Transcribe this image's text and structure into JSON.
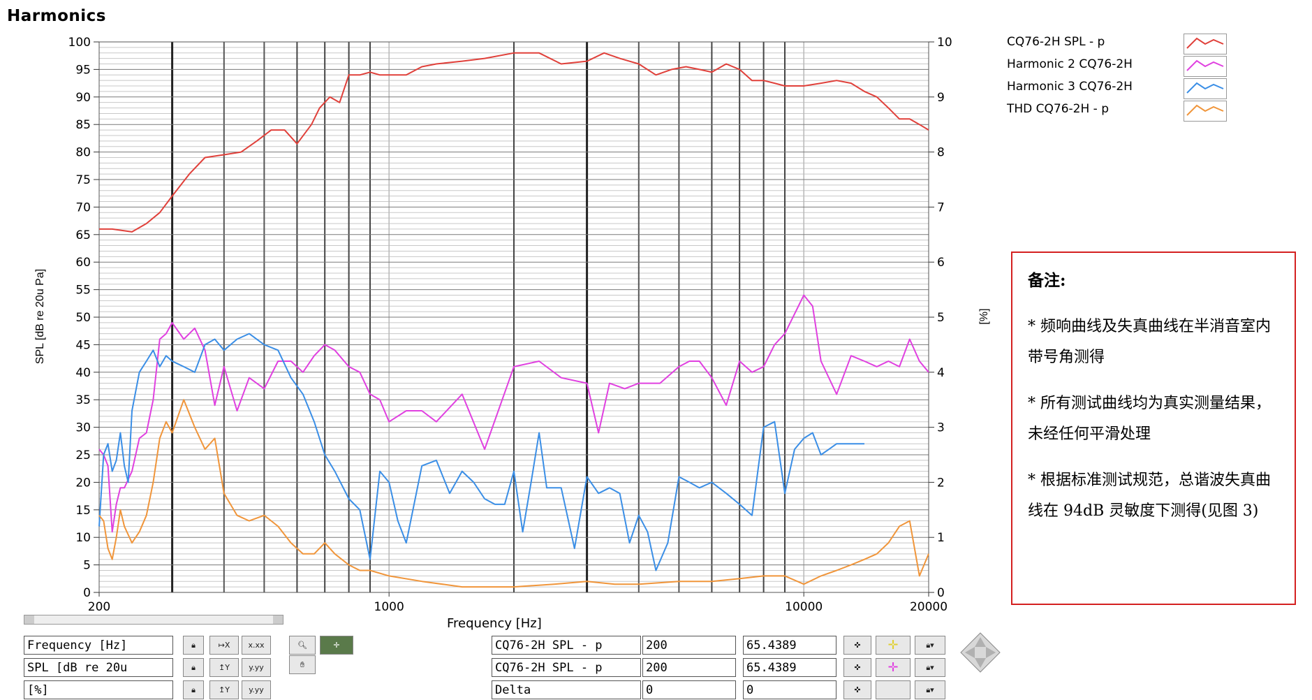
{
  "chart_data": {
    "type": "line",
    "title": "Harmonics",
    "xlabel": "Frequency [Hz]",
    "ylabel_left": "SPL [dB re 20u Pa]",
    "ylabel_right": "[%]",
    "x_scale": "log",
    "xlim": [
      200,
      20000
    ],
    "ylim_left": [
      0,
      100
    ],
    "ylim_right": [
      0,
      10
    ],
    "x_tick_labels": [
      "200",
      "1000",
      "10000",
      "20000"
    ],
    "y_tick_labels_left": [
      "0",
      "5",
      "10",
      "15",
      "20",
      "25",
      "30",
      "35",
      "40",
      "45",
      "50",
      "55",
      "60",
      "65",
      "70",
      "75",
      "80",
      "85",
      "90",
      "95",
      "100"
    ],
    "y_tick_labels_right": [
      "0",
      "1",
      "2",
      "3",
      "4",
      "5",
      "6",
      "7",
      "8",
      "9",
      "10"
    ],
    "grid": true,
    "legend_position": "top-right",
    "series": [
      {
        "name": "CQ76-2H  SPL - p",
        "color": "#e0403a",
        "axis": "left",
        "x": [
          200,
          215,
          240,
          260,
          280,
          300,
          330,
          360,
          400,
          440,
          480,
          520,
          560,
          600,
          650,
          680,
          720,
          760,
          800,
          850,
          900,
          950,
          1000,
          1100,
          1200,
          1300,
          1500,
          1700,
          2000,
          2300,
          2600,
          3000,
          3300,
          3600,
          4000,
          4400,
          4800,
          5200,
          5600,
          6000,
          6500,
          7000,
          7500,
          8000,
          8500,
          9000,
          10000,
          11000,
          12000,
          13000,
          14000,
          15000,
          16000,
          17000,
          18000,
          19000,
          20000
        ],
        "y": [
          66,
          66,
          65.5,
          67,
          69,
          72,
          76,
          79,
          79.5,
          80,
          82,
          84,
          84,
          81.5,
          85,
          88,
          90,
          89,
          94,
          94,
          94.5,
          94,
          94,
          94,
          95.5,
          96,
          96.5,
          97,
          98,
          98,
          96,
          96.5,
          98,
          97,
          96,
          94,
          95,
          95.5,
          95,
          94.5,
          96,
          95,
          93,
          93,
          92.5,
          92,
          92,
          92.5,
          93,
          92.5,
          91,
          90,
          88,
          86,
          86,
          85,
          84
        ]
      },
      {
        "name": "Harmonic 2   CQ76-2H",
        "color": "#e040e0",
        "axis": "right",
        "x": [
          200,
          205,
          210,
          215,
          220,
          225,
          230,
          240,
          250,
          260,
          270,
          280,
          290,
          300,
          320,
          340,
          360,
          380,
          400,
          430,
          460,
          500,
          540,
          580,
          620,
          660,
          700,
          740,
          800,
          850,
          900,
          950,
          1000,
          1100,
          1200,
          1300,
          1500,
          1700,
          2000,
          2300,
          2600,
          3000,
          3200,
          3400,
          3700,
          4000,
          4500,
          5000,
          5300,
          5600,
          6000,
          6500,
          7000,
          7500,
          8000,
          8500,
          9000,
          10000,
          10500,
          11000,
          12000,
          13000,
          14000,
          15000,
          16000,
          17000,
          18000,
          19000,
          20000
        ],
        "y": [
          2.6,
          2.5,
          2.3,
          1.1,
          1.6,
          1.9,
          1.9,
          2.2,
          2.8,
          2.9,
          3.5,
          4.6,
          4.7,
          4.9,
          4.6,
          4.8,
          4.4,
          3.4,
          4.1,
          3.3,
          3.9,
          3.7,
          4.2,
          4.2,
          4.0,
          4.3,
          4.5,
          4.4,
          4.1,
          4.0,
          3.6,
          3.5,
          3.1,
          3.3,
          3.3,
          3.1,
          3.6,
          2.6,
          4.1,
          4.2,
          3.9,
          3.8,
          2.9,
          3.8,
          3.7,
          3.8,
          3.8,
          4.1,
          4.2,
          4.2,
          3.9,
          3.4,
          4.2,
          4.0,
          4.1,
          4.5,
          4.7,
          5.4,
          5.2,
          4.2,
          3.6,
          4.3,
          4.2,
          4.1,
          4.2,
          4.1,
          4.6,
          4.2,
          4.0
        ]
      },
      {
        "name": "Harmonic 3  CQ76-2H",
        "color": "#3a8ee6",
        "axis": "right",
        "x": [
          200,
          205,
          210,
          215,
          220,
          225,
          230,
          235,
          240,
          250,
          260,
          270,
          280,
          290,
          300,
          320,
          340,
          360,
          380,
          400,
          430,
          460,
          500,
          540,
          580,
          620,
          660,
          700,
          740,
          800,
          850,
          900,
          950,
          1000,
          1050,
          1100,
          1200,
          1300,
          1400,
          1500,
          1600,
          1700,
          1800,
          1900,
          2000,
          2100,
          2200,
          2300,
          2400,
          2600,
          2800,
          3000,
          3200,
          3400,
          3600,
          3800,
          4000,
          4200,
          4400,
          4700,
          5000,
          5300,
          5600,
          6000,
          6500,
          7000,
          7500,
          8000,
          8500,
          9000,
          9500,
          10000,
          10500,
          11000,
          11500,
          12000,
          12500,
          13000,
          14000
        ],
        "y": [
          1.2,
          2.5,
          2.7,
          2.2,
          2.4,
          2.9,
          2.3,
          2.0,
          3.3,
          4.0,
          4.2,
          4.4,
          4.1,
          4.3,
          4.2,
          4.1,
          4.0,
          4.5,
          4.6,
          4.4,
          4.6,
          4.7,
          4.5,
          4.4,
          3.9,
          3.6,
          3.1,
          2.5,
          2.2,
          1.7,
          1.5,
          0.6,
          2.2,
          2.0,
          1.3,
          0.9,
          2.3,
          2.4,
          1.8,
          2.2,
          2.0,
          1.7,
          1.6,
          1.6,
          2.2,
          1.1,
          2.0,
          2.9,
          1.9,
          1.9,
          0.8,
          2.1,
          1.8,
          1.9,
          1.8,
          0.9,
          1.4,
          1.1,
          0.4,
          0.9,
          2.1,
          2.0,
          1.9,
          2.0,
          1.8,
          1.6,
          1.4,
          3.0,
          3.1,
          1.8,
          2.6,
          2.8,
          2.9,
          2.5,
          2.6,
          2.7,
          2.7,
          2.7,
          2.7
        ]
      },
      {
        "name": "THD  CQ76-2H - p",
        "color": "#f0953a",
        "axis": "right",
        "x": [
          200,
          205,
          210,
          215,
          220,
          225,
          230,
          240,
          250,
          260,
          270,
          280,
          290,
          300,
          320,
          340,
          360,
          380,
          400,
          430,
          460,
          500,
          540,
          580,
          620,
          660,
          700,
          740,
          800,
          850,
          900,
          1000,
          1200,
          1500,
          1800,
          2000,
          2500,
          3000,
          3500,
          4000,
          5000,
          6000,
          7000,
          8000,
          9000,
          10000,
          11000,
          12000,
          13000,
          14000,
          15000,
          16000,
          17000,
          18000,
          19000,
          20000
        ],
        "y": [
          1.4,
          1.3,
          0.8,
          0.6,
          1.0,
          1.5,
          1.2,
          0.9,
          1.1,
          1.4,
          2.0,
          2.8,
          3.1,
          2.9,
          3.5,
          3.0,
          2.6,
          2.8,
          1.8,
          1.4,
          1.3,
          1.4,
          1.2,
          0.9,
          0.7,
          0.7,
          0.9,
          0.7,
          0.5,
          0.4,
          0.4,
          0.3,
          0.2,
          0.1,
          0.1,
          0.1,
          0.15,
          0.2,
          0.15,
          0.15,
          0.2,
          0.2,
          0.25,
          0.3,
          0.3,
          0.15,
          0.3,
          0.4,
          0.5,
          0.6,
          0.7,
          0.9,
          1.2,
          1.3,
          0.3,
          0.7
        ]
      }
    ]
  },
  "legend": [
    {
      "label": "CQ76-2H  SPL - p",
      "color": "#e0403a"
    },
    {
      "label": "Harmonic 2   CQ76-2H",
      "color": "#e040e0"
    },
    {
      "label": "Harmonic 3  CQ76-2H",
      "color": "#3a8ee6"
    },
    {
      "label": "THD  CQ76-2H - p",
      "color": "#f0953a"
    }
  ],
  "notes": {
    "heading": "备注:",
    "items": [
      "* 频响曲线及失真曲线在半消音室内带号角测得",
      "* 所有测试曲线均为真实测量结果，未经任何平滑处理",
      "* 根据标准测试规范，总谐波失真曲线在 94dB 灵敏度下测得(见图 3)"
    ]
  },
  "controls": {
    "axis_fields": [
      "Frequency [Hz]",
      "SPL [dB re 20u",
      "[%]"
    ],
    "cursor_rows": [
      {
        "name": "CQ76-2H  SPL - p",
        "x": "200",
        "y": "65.4389"
      },
      {
        "name": "CQ76-2H  SPL - p",
        "x": "200",
        "y": "65.4389"
      },
      {
        "name": "Delta",
        "x": "0",
        "y": "0"
      }
    ]
  }
}
